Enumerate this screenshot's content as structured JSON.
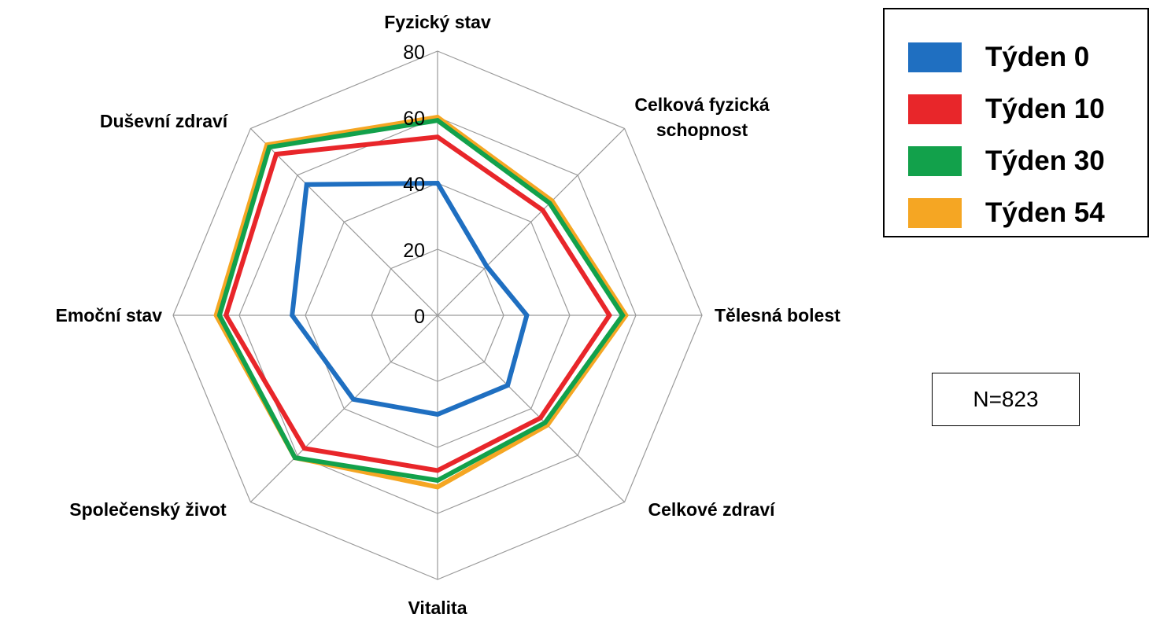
{
  "chart_data": {
    "type": "radar",
    "axes": [
      "Fyzický stav",
      "Celková fyzická schopnost",
      "Tělesná bolest",
      "Celkové zdraví",
      "Vitalita",
      "Společenský život",
      "Emoční stav",
      "Duševní zdraví"
    ],
    "axis_label_lines": [
      [
        "Fyzický stav"
      ],
      [
        "Celková fyzická",
        "schopnost"
      ],
      [
        "Tělesná bolest"
      ],
      [
        "Celkové zdraví"
      ],
      [
        "Vitalita"
      ],
      [
        "Společenský život"
      ],
      [
        "Emoční stav"
      ],
      [
        "Duševní zdraví"
      ]
    ],
    "rlim": [
      0,
      80
    ],
    "ticks": [
      0,
      20,
      40,
      60,
      80
    ],
    "tick_labels": [
      "0",
      "20",
      "40",
      "60",
      "80"
    ],
    "grid": true,
    "legend_position": "top-right",
    "series": [
      {
        "name": "Týden 0",
        "color": "#1f6fc1",
        "values": [
          40,
          21,
          27,
          30,
          30,
          36,
          44,
          56
        ]
      },
      {
        "name": "Týden 10",
        "color": "#e8262a",
        "values": [
          54,
          45,
          52,
          44,
          47,
          57,
          64,
          69
        ]
      },
      {
        "name": "Týden 30",
        "color": "#12a14b",
        "values": [
          59,
          48,
          56,
          46,
          50,
          61,
          66,
          72
        ]
      },
      {
        "name": "Týden 54",
        "color": "#f5a623",
        "values": [
          60,
          49,
          57,
          47,
          52,
          61,
          67,
          73
        ]
      }
    ],
    "annotation": "N=823"
  }
}
